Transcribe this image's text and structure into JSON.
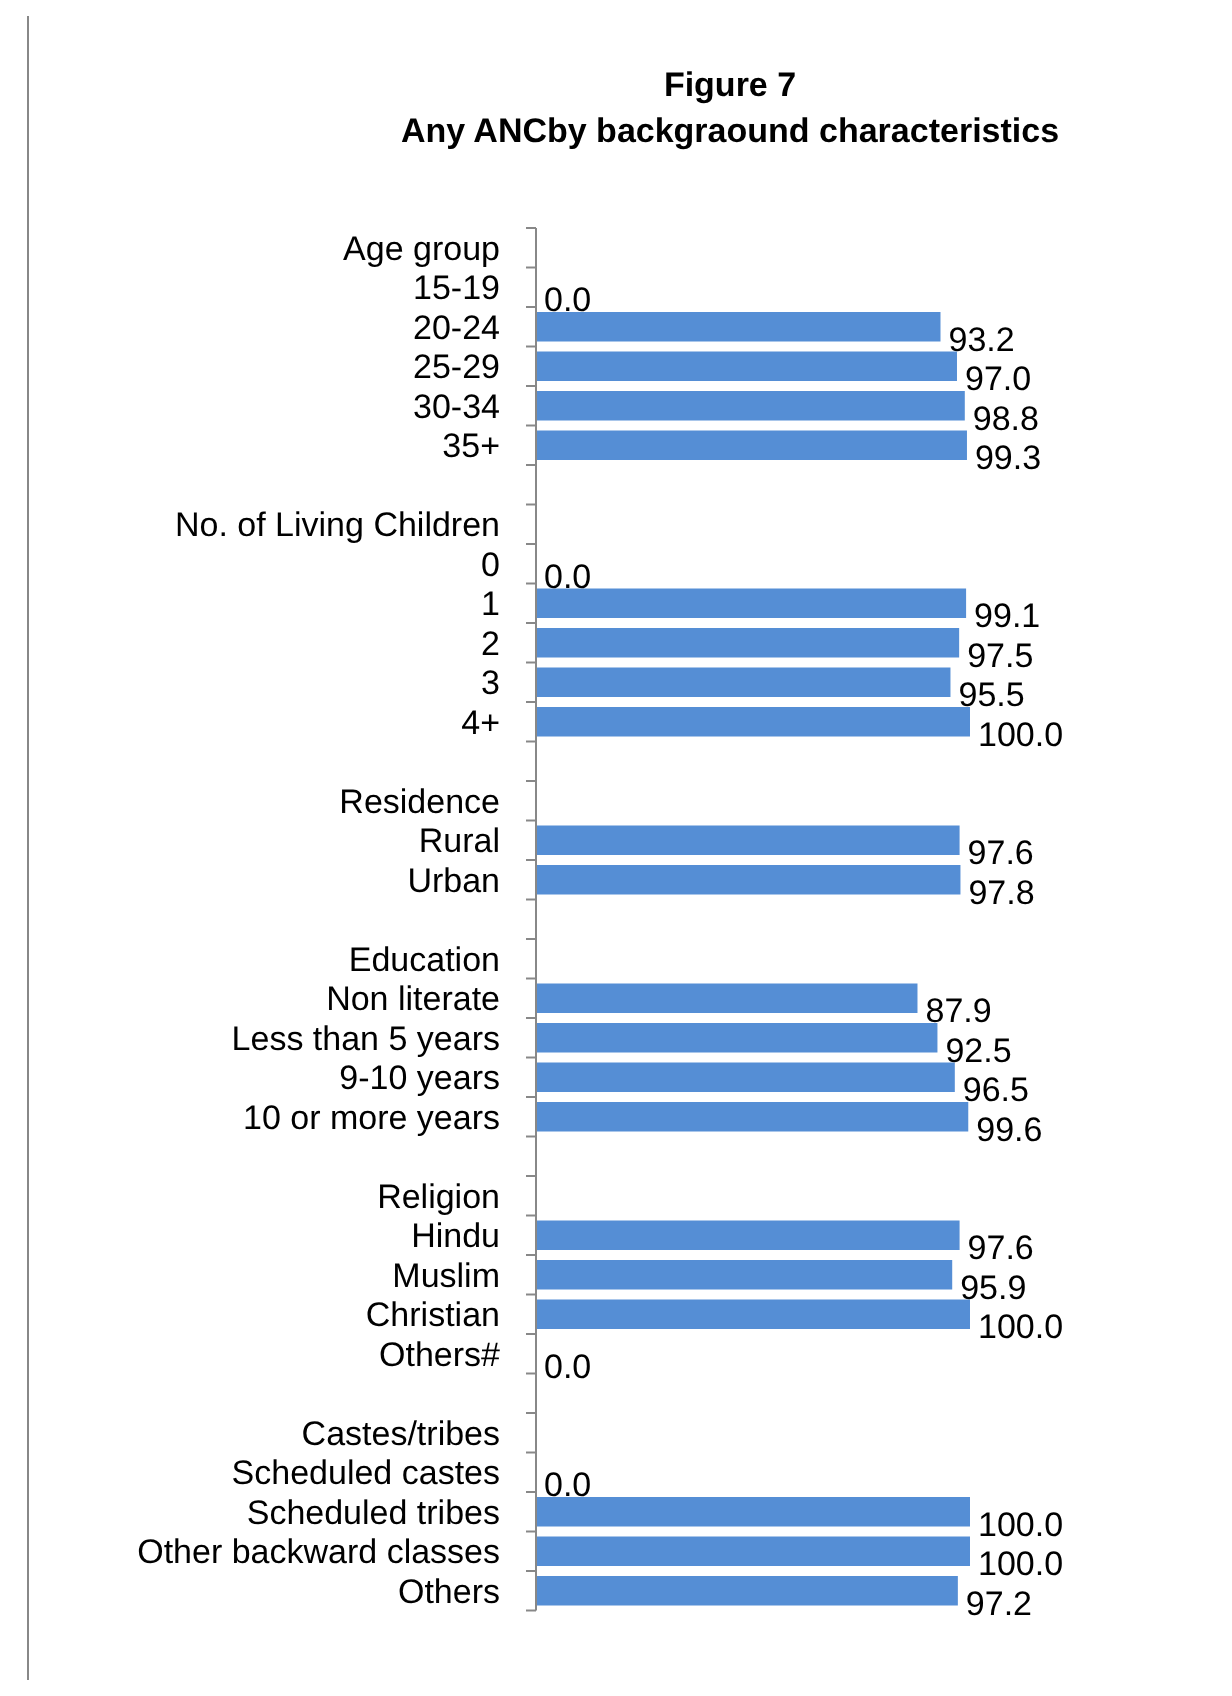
{
  "chart_data": {
    "type": "bar",
    "orientation": "horizontal",
    "title": "Figure 7",
    "subtitle": "Any ANCby backgraound characteristics",
    "categories": [
      "Age group",
      "15-19",
      "20-24",
      "25-29",
      "30-34",
      "35+",
      null,
      "No. of Living Children",
      "0",
      "1",
      "2",
      "3",
      "4+",
      null,
      "Residence",
      "Rural",
      "Urban",
      null,
      "Education",
      "Non literate",
      "Less than 5 years",
      "9-10 years",
      "10 or more years",
      null,
      "Religion",
      "Hindu",
      "Muslim",
      "Christian",
      "Others#",
      null,
      "Castes/tribes",
      "Scheduled castes",
      "Scheduled tribes",
      "Other backward classes",
      "Others"
    ],
    "values": [
      null,
      0,
      93.2,
      97,
      98.8,
      99.3,
      null,
      null,
      0,
      99.1,
      97.5,
      95.5,
      100,
      null,
      null,
      97.6,
      97.8,
      null,
      null,
      87.9,
      92.5,
      96.5,
      99.6,
      null,
      null,
      97.6,
      95.9,
      100,
      0,
      null,
      null,
      0,
      100,
      100,
      97.2
    ],
    "value_labels": [
      null,
      "0.0",
      "93.2",
      "97.0",
      "98.8",
      "99.3",
      null,
      null,
      "0.0",
      "99.1",
      "97.5",
      "95.5",
      "100.0",
      null,
      null,
      "97.6",
      "97.8",
      null,
      null,
      "87.9",
      "92.5",
      "96.5",
      "99.6",
      null,
      null,
      "97.6",
      "95.9",
      "100.0",
      "0.0",
      null,
      null,
      "0.0",
      "100.0",
      "100.0",
      "97.2"
    ],
    "color": "#558ed5"
  }
}
